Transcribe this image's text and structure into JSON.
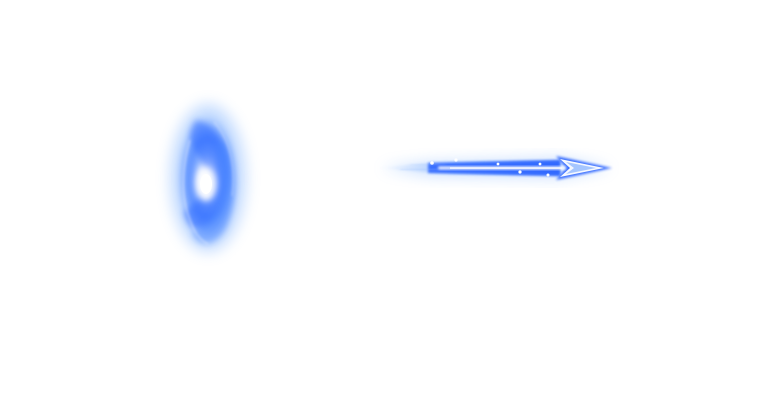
{
  "scene": {
    "background_color": "#ffffff",
    "effects": [
      {
        "name": "portal-ring",
        "color": "#3f7bff",
        "glow_color": "#7fb2ff",
        "core_color": "#ffffff"
      },
      {
        "name": "energy-arrow",
        "color": "#2f66ff",
        "glow_color": "#6fa8ff",
        "core_color": "#ffffff",
        "direction": "right"
      }
    ]
  }
}
